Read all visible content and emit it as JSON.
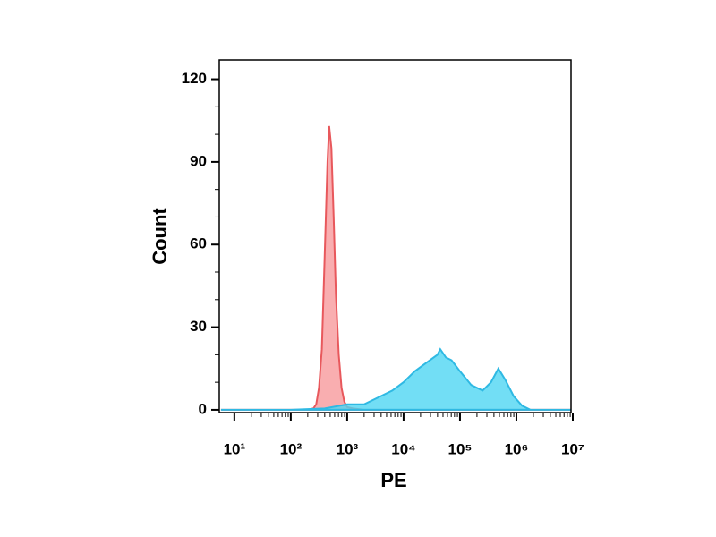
{
  "chart_data": {
    "type": "area",
    "x_label": "PE",
    "y_label": "Count",
    "xscale": "log",
    "xlim": [
      5.4,
      9300000
    ],
    "ylim": [
      -1,
      127
    ],
    "xticks": [
      {
        "value": 10,
        "label": "10¹"
      },
      {
        "value": 100,
        "label": "10²"
      },
      {
        "value": 1000,
        "label": "10³"
      },
      {
        "value": 10000,
        "label": "10⁴"
      },
      {
        "value": 100000,
        "label": "10⁵"
      },
      {
        "value": 1000000,
        "label": "10⁶"
      },
      {
        "value": 10000000,
        "label": "10⁷"
      }
    ],
    "yticks": [
      0,
      30,
      60,
      90,
      120
    ],
    "series": [
      {
        "color": "#e8585c",
        "fill": "#f79a9c",
        "x": [
          6,
          200,
          251,
          282,
          316,
          355,
          398,
          447,
          479,
          525,
          575,
          631,
          708,
          794,
          891,
          1000,
          1259,
          1995,
          9000000
        ],
        "values": [
          0,
          0,
          0.5,
          2,
          8,
          22,
          55,
          90,
          103,
          95,
          70,
          42,
          20,
          8,
          3,
          1,
          0.5,
          0,
          0
        ]
      },
      {
        "color": "#2fb9e3",
        "fill": "#4fd6f2",
        "x": [
          6,
          100,
          398,
          1000,
          1995,
          3162,
          6310,
          10000,
          15849,
          25119,
          39811,
          44668,
          56234,
          70795,
          100000,
          158489,
          251189,
          354813,
          478630,
          630957,
          891251,
          1258925,
          1778279,
          9000000
        ],
        "values": [
          0,
          0,
          0.5,
          2,
          2,
          4,
          7,
          10,
          14,
          17,
          20,
          22,
          19,
          18,
          14,
          9,
          7,
          10,
          15,
          11,
          5,
          1.5,
          0,
          0
        ]
      }
    ]
  }
}
